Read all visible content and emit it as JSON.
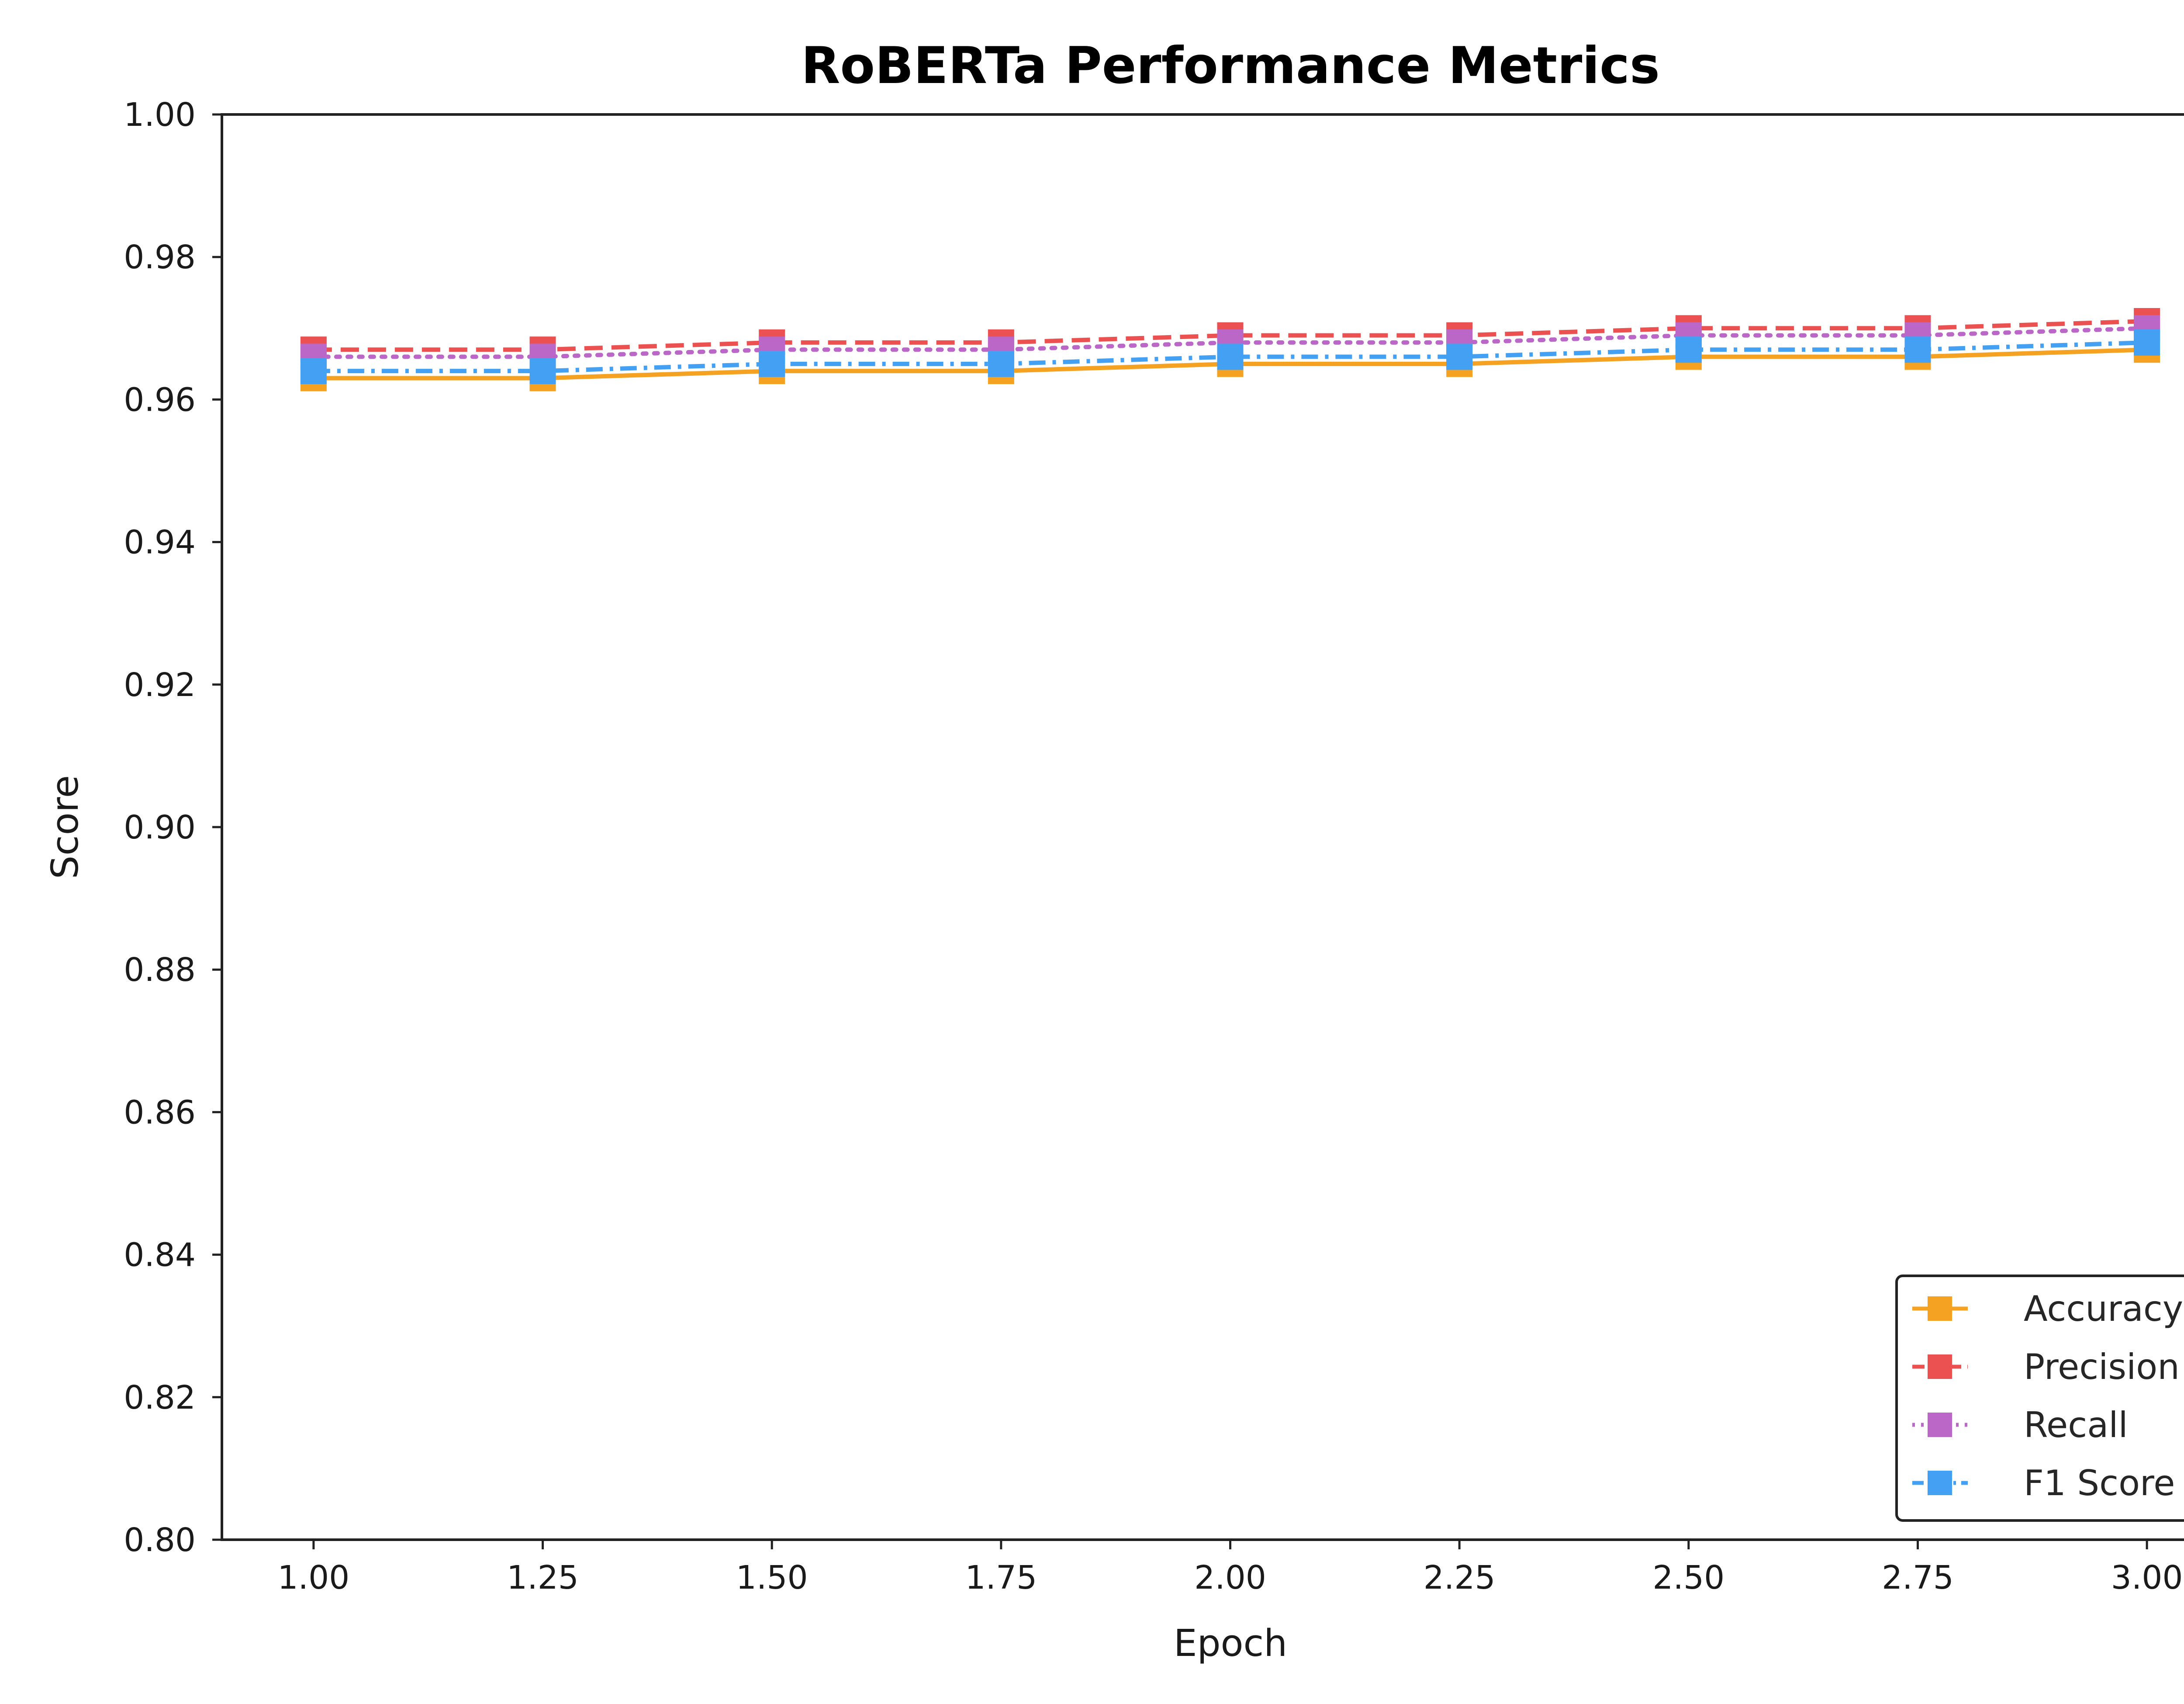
{
  "chart_data": {
    "type": "line",
    "title": "RoBERTa Performance Metrics",
    "xlabel": "Epoch",
    "ylabel": "Score",
    "xlim": [
      0.9,
      3.1
    ],
    "ylim": [
      0.8,
      1.0
    ],
    "x_ticks": [
      "1.00",
      "1.25",
      "1.50",
      "1.75",
      "2.00",
      "2.25",
      "2.50",
      "2.75",
      "3.00"
    ],
    "y_ticks": [
      "0.80",
      "0.82",
      "0.84",
      "0.86",
      "0.88",
      "0.90",
      "0.92",
      "0.94",
      "0.96",
      "0.98",
      "1.00"
    ],
    "grid": false,
    "legend_position": "lower-right",
    "x": [
      1.0,
      1.25,
      1.5,
      1.75,
      2.0,
      2.25,
      2.5,
      2.75,
      3.0
    ],
    "series": [
      {
        "name": "Accuracy",
        "color": "#F5A122",
        "dash": "solid",
        "values": [
          0.963,
          0.963,
          0.964,
          0.964,
          0.965,
          0.965,
          0.966,
          0.966,
          0.967
        ]
      },
      {
        "name": "Precision",
        "color": "#EC5151",
        "dash": "dashed",
        "values": [
          0.967,
          0.967,
          0.968,
          0.968,
          0.969,
          0.969,
          0.97,
          0.97,
          0.971
        ]
      },
      {
        "name": "Recall",
        "color": "#BA67C8",
        "dash": "dotted",
        "values": [
          0.966,
          0.966,
          0.967,
          0.967,
          0.968,
          0.968,
          0.969,
          0.969,
          0.97
        ]
      },
      {
        "name": "F1 Score",
        "color": "#43A0F2",
        "dash": "dashdot",
        "values": [
          0.964,
          0.964,
          0.965,
          0.965,
          0.966,
          0.966,
          0.967,
          0.967,
          0.968
        ]
      }
    ]
  }
}
